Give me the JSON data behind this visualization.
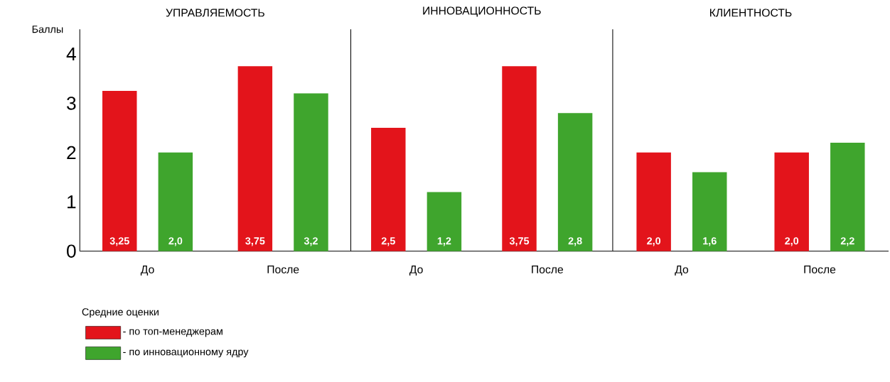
{
  "chart_data": [
    {
      "type": "bar",
      "title": "УПРАВЛЯЕМОСТЬ",
      "ylabel": "Баллы",
      "categories": [
        "До",
        "После"
      ],
      "ylim": [
        0,
        4.5
      ],
      "yticks": [
        0,
        1,
        2,
        3,
        4
      ],
      "legend": "bottom left",
      "legend_title": "Средние оценки",
      "series": [
        {
          "name": "- по топ-менеджерам",
          "color": "#e3141b",
          "values": [
            3.25,
            3.75
          ],
          "value_labels": [
            "3,25",
            "3,75"
          ]
        },
        {
          "name": "- по инновационному ядру",
          "color": "#3fa52d",
          "values": [
            2.0,
            3.2
          ],
          "value_labels": [
            "2,0",
            "3,2"
          ]
        }
      ]
    },
    {
      "type": "bar",
      "title": "ИННОВАЦИОННОСТЬ",
      "categories": [
        "До",
        "После"
      ],
      "ylim": [
        0,
        4.5
      ],
      "tick_labels": "x",
      "series": [
        {
          "color": "#e3141b",
          "values": [
            2.5,
            3.75
          ],
          "value_labels": [
            "2,5",
            "3,75"
          ]
        },
        {
          "color": "#3fa52d",
          "values": [
            1.2,
            2.8
          ],
          "value_labels": [
            "1,2",
            "2,8"
          ]
        }
      ]
    },
    {
      "type": "bar",
      "title": "КЛИЕНТНОСТЬ",
      "categories": [
        "До",
        "После"
      ],
      "ylim": [
        0,
        4.5
      ],
      "tick_labels": "x",
      "series": [
        {
          "color": "#e3141b",
          "values": [
            2.0,
            2.0
          ],
          "value_labels": [
            "2,0",
            "2,0"
          ]
        },
        {
          "color": "#3fa52d",
          "values": [
            1.6,
            2.2
          ],
          "value_labels": [
            "1,6",
            "2,2"
          ]
        }
      ]
    }
  ]
}
